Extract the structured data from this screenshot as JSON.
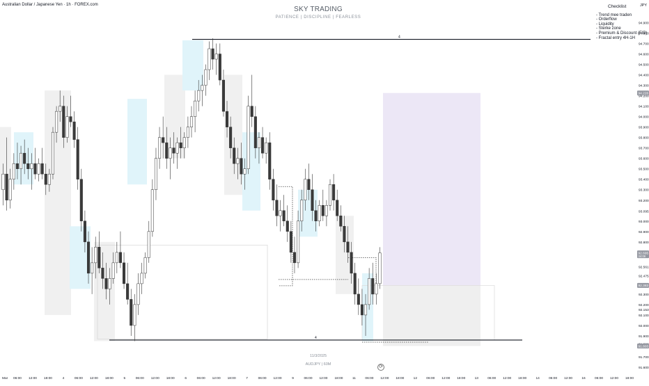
{
  "header": {
    "symbol": "Australian Dollar / Japanese Yen · 1h · FOREX.com",
    "brand_title": "SKY TRADING",
    "brand_subtitle": "PATIENCE  |  DISCIPLINE  |  FEARLESS",
    "currency": "JPY"
  },
  "checklist": {
    "title": "Checklist",
    "items": [
      "- Trend mee traden",
      "- Orderflow",
      "- Liquidity",
      "- Sterke zone",
      "- Premium & Discount (FIB)",
      "- Fractal entry 4H-1H"
    ]
  },
  "watermark": {
    "date": "11/3/2025",
    "pair": "AUDJPY  |  60M"
  },
  "chart_data": {
    "type": "candlestick",
    "symbol": "AUDJPY",
    "timeframe": "1h",
    "y_axis_ticks": [
      "94.900",
      "94.800",
      "94.700",
      "94.600",
      "94.500",
      "94.400",
      "94.300",
      "94.200",
      "94.100",
      "94.000",
      "93.900",
      "93.800",
      "93.700",
      "93.600",
      "93.500",
      "93.400",
      "93.300",
      "93.200",
      "93.095",
      "93.000",
      "92.900",
      "92.800",
      "92.700",
      "92.561",
      "92.475",
      "92.300",
      "92.200",
      "92.153",
      "92.100",
      "92.000",
      "91.900",
      "91.822",
      "91.700",
      "91.600"
    ],
    "y_range": [
      91.6,
      94.95
    ],
    "price_badges": [
      {
        "value": "94.226",
        "color": "#9598a1"
      },
      {
        "value": "92.695",
        "sub": "34:08",
        "color": "#9598a1"
      },
      {
        "value": "92.383",
        "color": "#9598a1"
      },
      {
        "value": "91.803",
        "color": "#9598a1"
      }
    ],
    "x_axis_labels": [
      "Mar",
      "06:00",
      "12:00",
      "18:00",
      "4",
      "06:00",
      "12:00",
      "18:00",
      "5",
      "06:00",
      "12:00",
      "18:00",
      "6",
      "06:00",
      "12:00",
      "18:00",
      "7",
      "06:00",
      "12:00",
      "9",
      "06:00",
      "12:00",
      "18:00",
      "11",
      "06:00",
      "12:00",
      "18:00",
      "12",
      "06:00",
      "12:00",
      "18:00",
      "13",
      "06:00",
      "12:00",
      "18:00",
      "14",
      "06:00",
      "12:00",
      "16",
      "06:00",
      "12:00",
      "18:00"
    ],
    "horizontal_levels": [
      {
        "price": 94.74,
        "color": "#131722",
        "label": "4"
      },
      {
        "price": 91.86,
        "color": "#131722",
        "label": "4"
      }
    ],
    "trade_zone": {
      "entry": 92.383,
      "target": 94.226,
      "stop": 91.803
    },
    "candles": [
      {
        "o": 93.3,
        "h": 93.55,
        "l": 93.15,
        "c": 93.45
      },
      {
        "o": 93.45,
        "h": 93.8,
        "l": 93.1,
        "c": 93.2
      },
      {
        "o": 93.2,
        "h": 93.5,
        "l": 93.12,
        "c": 93.4
      },
      {
        "o": 93.4,
        "h": 93.65,
        "l": 93.3,
        "c": 93.55
      },
      {
        "o": 93.55,
        "h": 93.75,
        "l": 93.4,
        "c": 93.5
      },
      {
        "o": 93.5,
        "h": 93.72,
        "l": 93.35,
        "c": 93.65
      },
      {
        "o": 93.65,
        "h": 93.78,
        "l": 93.45,
        "c": 93.55
      },
      {
        "o": 93.55,
        "h": 93.7,
        "l": 93.4,
        "c": 93.5
      },
      {
        "o": 93.5,
        "h": 93.65,
        "l": 93.3,
        "c": 93.55
      },
      {
        "o": 93.55,
        "h": 93.7,
        "l": 93.4,
        "c": 93.45
      },
      {
        "o": 93.45,
        "h": 93.6,
        "l": 93.38,
        "c": 93.55
      },
      {
        "o": 93.55,
        "h": 93.7,
        "l": 93.4,
        "c": 93.45
      },
      {
        "o": 93.45,
        "h": 93.55,
        "l": 93.25,
        "c": 93.35
      },
      {
        "o": 93.35,
        "h": 93.5,
        "l": 93.28,
        "c": 93.45
      },
      {
        "o": 93.45,
        "h": 93.9,
        "l": 93.4,
        "c": 93.85
      },
      {
        "o": 93.85,
        "h": 94.1,
        "l": 93.75,
        "c": 94.05
      },
      {
        "o": 94.05,
        "h": 94.25,
        "l": 93.95,
        "c": 94.1
      },
      {
        "o": 94.1,
        "h": 94.2,
        "l": 93.7,
        "c": 93.8
      },
      {
        "o": 93.8,
        "h": 94.1,
        "l": 93.75,
        "c": 94.0
      },
      {
        "o": 94.0,
        "h": 94.2,
        "l": 93.9,
        "c": 93.95
      },
      {
        "o": 93.95,
        "h": 94.05,
        "l": 93.7,
        "c": 93.78
      },
      {
        "o": 93.78,
        "h": 93.9,
        "l": 93.3,
        "c": 93.4
      },
      {
        "o": 93.4,
        "h": 93.5,
        "l": 92.9,
        "c": 93.0
      },
      {
        "o": 93.0,
        "h": 93.1,
        "l": 92.7,
        "c": 92.8
      },
      {
        "o": 92.8,
        "h": 92.9,
        "l": 92.4,
        "c": 92.5
      },
      {
        "o": 92.5,
        "h": 92.75,
        "l": 92.3,
        "c": 92.6
      },
      {
        "o": 92.6,
        "h": 92.85,
        "l": 92.45,
        "c": 92.75
      },
      {
        "o": 92.75,
        "h": 92.9,
        "l": 92.5,
        "c": 92.55
      },
      {
        "o": 92.55,
        "h": 92.7,
        "l": 92.35,
        "c": 92.45
      },
      {
        "o": 92.45,
        "h": 92.6,
        "l": 92.25,
        "c": 92.35
      },
      {
        "o": 92.35,
        "h": 92.55,
        "l": 92.2,
        "c": 92.45
      },
      {
        "o": 92.45,
        "h": 92.7,
        "l": 92.4,
        "c": 92.6
      },
      {
        "o": 92.6,
        "h": 92.8,
        "l": 92.5,
        "c": 92.7
      },
      {
        "o": 92.7,
        "h": 92.9,
        "l": 92.55,
        "c": 92.6
      },
      {
        "o": 92.6,
        "h": 92.7,
        "l": 92.35,
        "c": 92.4
      },
      {
        "o": 92.4,
        "h": 92.6,
        "l": 92.2,
        "c": 92.25
      },
      {
        "o": 92.25,
        "h": 92.35,
        "l": 91.9,
        "c": 92.0
      },
      {
        "o": 92.0,
        "h": 92.3,
        "l": 91.85,
        "c": 92.2
      },
      {
        "o": 92.2,
        "h": 92.5,
        "l": 92.1,
        "c": 92.4
      },
      {
        "o": 92.4,
        "h": 92.6,
        "l": 92.3,
        "c": 92.5
      },
      {
        "o": 92.5,
        "h": 92.7,
        "l": 92.45,
        "c": 92.65
      },
      {
        "o": 92.65,
        "h": 93.0,
        "l": 92.6,
        "c": 92.9
      },
      {
        "o": 92.9,
        "h": 93.4,
        "l": 92.85,
        "c": 93.3
      },
      {
        "o": 93.3,
        "h": 93.7,
        "l": 93.2,
        "c": 93.6
      },
      {
        "o": 93.6,
        "h": 93.9,
        "l": 93.5,
        "c": 93.8
      },
      {
        "o": 93.8,
        "h": 94.0,
        "l": 93.6,
        "c": 93.75
      },
      {
        "o": 93.75,
        "h": 93.9,
        "l": 93.5,
        "c": 93.6
      },
      {
        "o": 93.6,
        "h": 93.8,
        "l": 93.4,
        "c": 93.7
      },
      {
        "o": 93.7,
        "h": 93.85,
        "l": 93.55,
        "c": 93.65
      },
      {
        "o": 93.65,
        "h": 93.8,
        "l": 93.5,
        "c": 93.75
      },
      {
        "o": 93.75,
        "h": 93.9,
        "l": 93.6,
        "c": 93.7
      },
      {
        "o": 93.7,
        "h": 93.85,
        "l": 93.6,
        "c": 93.8
      },
      {
        "o": 93.8,
        "h": 94.0,
        "l": 93.7,
        "c": 93.9
      },
      {
        "o": 93.9,
        "h": 94.1,
        "l": 93.8,
        "c": 94.0
      },
      {
        "o": 94.0,
        "h": 94.25,
        "l": 93.85,
        "c": 94.15
      },
      {
        "o": 94.15,
        "h": 94.35,
        "l": 94.05,
        "c": 94.25
      },
      {
        "o": 94.25,
        "h": 94.4,
        "l": 94.1,
        "c": 94.3
      },
      {
        "o": 94.3,
        "h": 94.5,
        "l": 94.2,
        "c": 94.45
      },
      {
        "o": 94.45,
        "h": 94.72,
        "l": 94.35,
        "c": 94.65
      },
      {
        "o": 94.65,
        "h": 94.75,
        "l": 94.45,
        "c": 94.55
      },
      {
        "o": 94.55,
        "h": 94.7,
        "l": 94.4,
        "c": 94.6
      },
      {
        "o": 94.6,
        "h": 94.7,
        "l": 94.3,
        "c": 94.35
      },
      {
        "o": 94.35,
        "h": 94.45,
        "l": 94.0,
        "c": 94.05
      },
      {
        "o": 94.05,
        "h": 94.15,
        "l": 93.8,
        "c": 93.9
      },
      {
        "o": 93.9,
        "h": 94.0,
        "l": 93.6,
        "c": 93.7
      },
      {
        "o": 93.7,
        "h": 93.8,
        "l": 93.45,
        "c": 93.55
      },
      {
        "o": 93.55,
        "h": 93.7,
        "l": 93.4,
        "c": 93.6
      },
      {
        "o": 93.6,
        "h": 93.75,
        "l": 93.35,
        "c": 93.45
      },
      {
        "o": 93.45,
        "h": 93.6,
        "l": 93.3,
        "c": 93.5
      },
      {
        "o": 93.5,
        "h": 94.2,
        "l": 93.45,
        "c": 94.1
      },
      {
        "o": 94.1,
        "h": 94.4,
        "l": 93.9,
        "c": 94.0
      },
      {
        "o": 94.0,
        "h": 94.1,
        "l": 93.6,
        "c": 93.7
      },
      {
        "o": 93.7,
        "h": 93.85,
        "l": 93.55,
        "c": 93.8
      },
      {
        "o": 93.8,
        "h": 93.9,
        "l": 93.6,
        "c": 93.65
      },
      {
        "o": 93.65,
        "h": 93.8,
        "l": 93.55,
        "c": 93.75
      },
      {
        "o": 93.75,
        "h": 93.85,
        "l": 93.3,
        "c": 93.4
      },
      {
        "o": 93.4,
        "h": 93.5,
        "l": 93.1,
        "c": 93.2
      },
      {
        "o": 93.2,
        "h": 93.35,
        "l": 92.95,
        "c": 93.05
      },
      {
        "o": 93.05,
        "h": 93.2,
        "l": 92.9,
        "c": 93.1
      },
      {
        "o": 93.1,
        "h": 93.25,
        "l": 92.95,
        "c": 93.0
      },
      {
        "o": 93.0,
        "h": 93.15,
        "l": 92.8,
        "c": 92.9
      },
      {
        "o": 92.9,
        "h": 93.0,
        "l": 92.6,
        "c": 92.7
      },
      {
        "o": 92.7,
        "h": 92.85,
        "l": 92.5,
        "c": 92.6
      },
      {
        "o": 92.6,
        "h": 93.1,
        "l": 92.55,
        "c": 93.0
      },
      {
        "o": 93.0,
        "h": 93.3,
        "l": 92.9,
        "c": 93.2
      },
      {
        "o": 93.2,
        "h": 93.5,
        "l": 93.1,
        "c": 93.4
      },
      {
        "o": 93.4,
        "h": 93.55,
        "l": 93.2,
        "c": 93.3
      },
      {
        "o": 93.3,
        "h": 93.45,
        "l": 93.0,
        "c": 93.1
      },
      {
        "o": 93.1,
        "h": 93.2,
        "l": 92.9,
        "c": 93.0
      },
      {
        "o": 93.0,
        "h": 93.2,
        "l": 92.95,
        "c": 93.15
      },
      {
        "o": 93.15,
        "h": 93.3,
        "l": 93.0,
        "c": 93.05
      },
      {
        "o": 93.05,
        "h": 93.2,
        "l": 92.95,
        "c": 93.15
      },
      {
        "o": 93.15,
        "h": 93.4,
        "l": 93.1,
        "c": 93.35
      },
      {
        "o": 93.35,
        "h": 93.45,
        "l": 93.1,
        "c": 93.2
      },
      {
        "o": 93.2,
        "h": 93.3,
        "l": 93.0,
        "c": 93.05
      },
      {
        "o": 93.05,
        "h": 93.15,
        "l": 92.9,
        "c": 92.95
      },
      {
        "o": 92.95,
        "h": 93.05,
        "l": 92.7,
        "c": 92.8
      },
      {
        "o": 92.8,
        "h": 92.95,
        "l": 92.6,
        "c": 92.7
      },
      {
        "o": 92.7,
        "h": 92.8,
        "l": 92.4,
        "c": 92.5
      },
      {
        "o": 92.5,
        "h": 92.6,
        "l": 92.2,
        "c": 92.3
      },
      {
        "o": 92.3,
        "h": 92.45,
        "l": 92.1,
        "c": 92.2
      },
      {
        "o": 92.2,
        "h": 92.35,
        "l": 92.0,
        "c": 92.1
      },
      {
        "o": 92.1,
        "h": 92.3,
        "l": 91.9,
        "c": 92.2
      },
      {
        "o": 92.2,
        "h": 92.55,
        "l": 92.15,
        "c": 92.45
      },
      {
        "o": 92.45,
        "h": 92.6,
        "l": 92.2,
        "c": 92.3
      },
      {
        "o": 92.3,
        "h": 92.5,
        "l": 92.2,
        "c": 92.4
      },
      {
        "o": 92.4,
        "h": 92.75,
        "l": 92.35,
        "c": 92.695
      }
    ]
  }
}
